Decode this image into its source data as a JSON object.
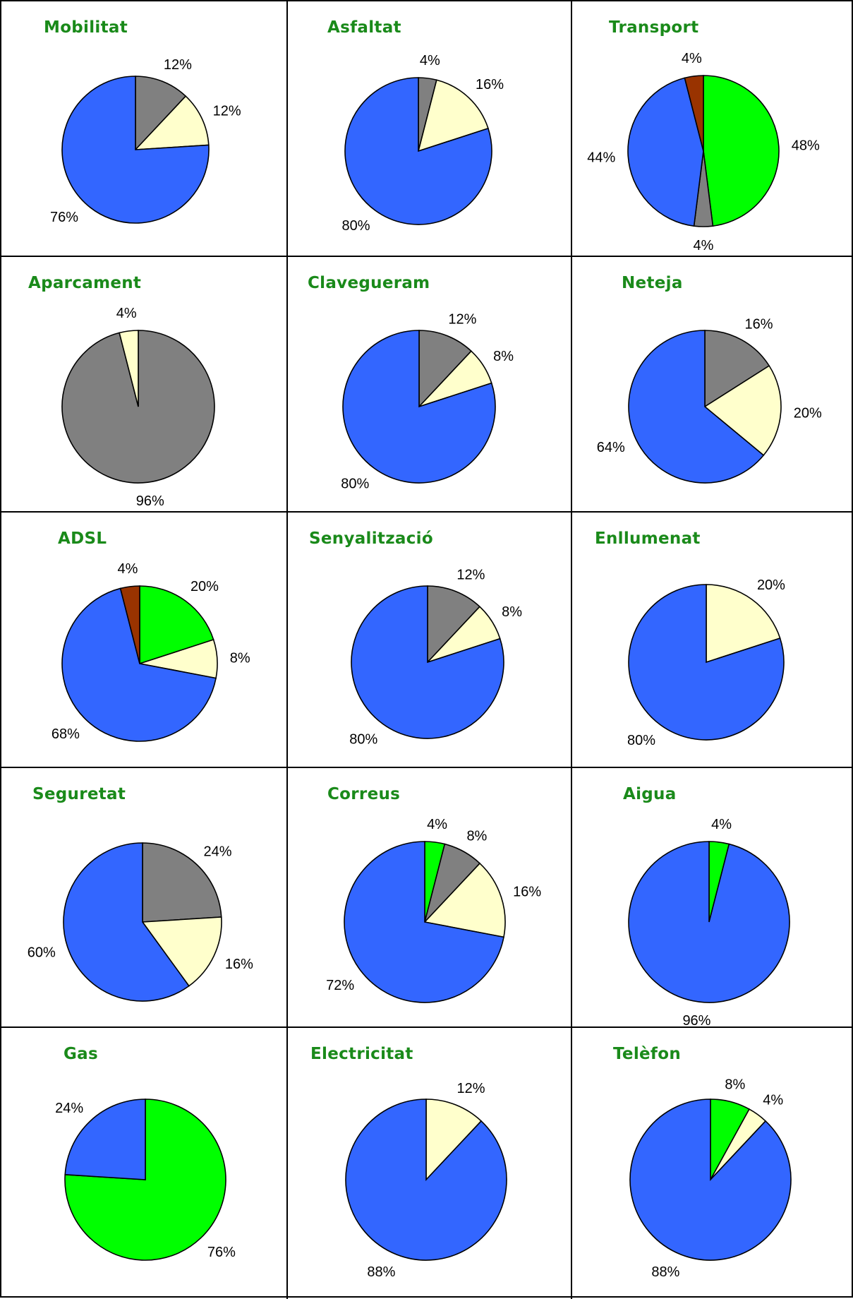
{
  "colors": {
    "blue": "#3366ff",
    "gray": "#808080",
    "cream": "#ffffcc",
    "green": "#00ff00",
    "brown": "#993300",
    "title": "#1a8a1a"
  },
  "chart_data": [
    {
      "type": "pie",
      "title": "Mobilitat",
      "slices": [
        {
          "value": 12,
          "label": "12%",
          "color": "gray"
        },
        {
          "value": 12,
          "label": "12%",
          "color": "cream"
        },
        {
          "value": 76,
          "label": "76%",
          "color": "blue"
        }
      ]
    },
    {
      "type": "pie",
      "title": "Asfaltat",
      "slices": [
        {
          "value": 4,
          "label": "4%",
          "color": "gray"
        },
        {
          "value": 16,
          "label": "16%",
          "color": "cream"
        },
        {
          "value": 80,
          "label": "80%",
          "color": "blue"
        }
      ]
    },
    {
      "type": "pie",
      "title": "Transport",
      "slices": [
        {
          "value": 48,
          "label": "48%",
          "color": "green"
        },
        {
          "value": 4,
          "label": "4%",
          "color": "gray"
        },
        {
          "value": 44,
          "label": "44%",
          "color": "blue"
        },
        {
          "value": 4,
          "label": "4%",
          "color": "brown"
        }
      ]
    },
    {
      "type": "pie",
      "title": "Aparcament",
      "slices": [
        {
          "value": 96,
          "label": "96%",
          "color": "gray"
        },
        {
          "value": 4,
          "label": "4%",
          "color": "cream"
        }
      ]
    },
    {
      "type": "pie",
      "title": "Clavegueram",
      "slices": [
        {
          "value": 12,
          "label": "12%",
          "color": "gray"
        },
        {
          "value": 8,
          "label": "8%",
          "color": "cream"
        },
        {
          "value": 80,
          "label": "80%",
          "color": "blue"
        }
      ]
    },
    {
      "type": "pie",
      "title": "Neteja",
      "slices": [
        {
          "value": 16,
          "label": "16%",
          "color": "gray"
        },
        {
          "value": 20,
          "label": "20%",
          "color": "cream"
        },
        {
          "value": 64,
          "label": "64%",
          "color": "blue"
        }
      ]
    },
    {
      "type": "pie",
      "title": "ADSL",
      "slices": [
        {
          "value": 20,
          "label": "20%",
          "color": "green"
        },
        {
          "value": 8,
          "label": "8%",
          "color": "cream"
        },
        {
          "value": 68,
          "label": "68%",
          "color": "blue"
        },
        {
          "value": 4,
          "label": "4%",
          "color": "brown"
        }
      ]
    },
    {
      "type": "pie",
      "title": "Senyalització",
      "slices": [
        {
          "value": 12,
          "label": "12%",
          "color": "gray"
        },
        {
          "value": 8,
          "label": "8%",
          "color": "cream"
        },
        {
          "value": 80,
          "label": "80%",
          "color": "blue"
        }
      ]
    },
    {
      "type": "pie",
      "title": "Enllumenat",
      "slices": [
        {
          "value": 20,
          "label": "20%",
          "color": "cream"
        },
        {
          "value": 80,
          "label": "80%",
          "color": "blue"
        }
      ]
    },
    {
      "type": "pie",
      "title": "Seguretat",
      "slices": [
        {
          "value": 24,
          "label": "24%",
          "color": "gray"
        },
        {
          "value": 16,
          "label": "16%",
          "color": "cream"
        },
        {
          "value": 60,
          "label": "60%",
          "color": "blue"
        }
      ]
    },
    {
      "type": "pie",
      "title": "Correus",
      "slices": [
        {
          "value": 4,
          "label": "4%",
          "color": "green"
        },
        {
          "value": 8,
          "label": "8%",
          "color": "gray"
        },
        {
          "value": 16,
          "label": "16%",
          "color": "cream"
        },
        {
          "value": 72,
          "label": "72%",
          "color": "blue"
        }
      ]
    },
    {
      "type": "pie",
      "title": "Aigua",
      "slices": [
        {
          "value": 4,
          "label": "4%",
          "color": "green"
        },
        {
          "value": 96,
          "label": "96%",
          "color": "blue"
        }
      ]
    },
    {
      "type": "pie",
      "title": "Gas",
      "slices": [
        {
          "value": 76,
          "label": "76%",
          "color": "green"
        },
        {
          "value": 24,
          "label": "24%",
          "color": "blue"
        }
      ]
    },
    {
      "type": "pie",
      "title": "Electricitat",
      "slices": [
        {
          "value": 12,
          "label": "12%",
          "color": "cream"
        },
        {
          "value": 88,
          "label": "88%",
          "color": "blue"
        }
      ]
    },
    {
      "type": "pie",
      "title": "Telèfon",
      "slices": [
        {
          "value": 8,
          "label": "8%",
          "color": "green"
        },
        {
          "value": 4,
          "label": "4%",
          "color": "cream"
        },
        {
          "value": 88,
          "label": "88%",
          "color": "blue"
        }
      ]
    }
  ]
}
